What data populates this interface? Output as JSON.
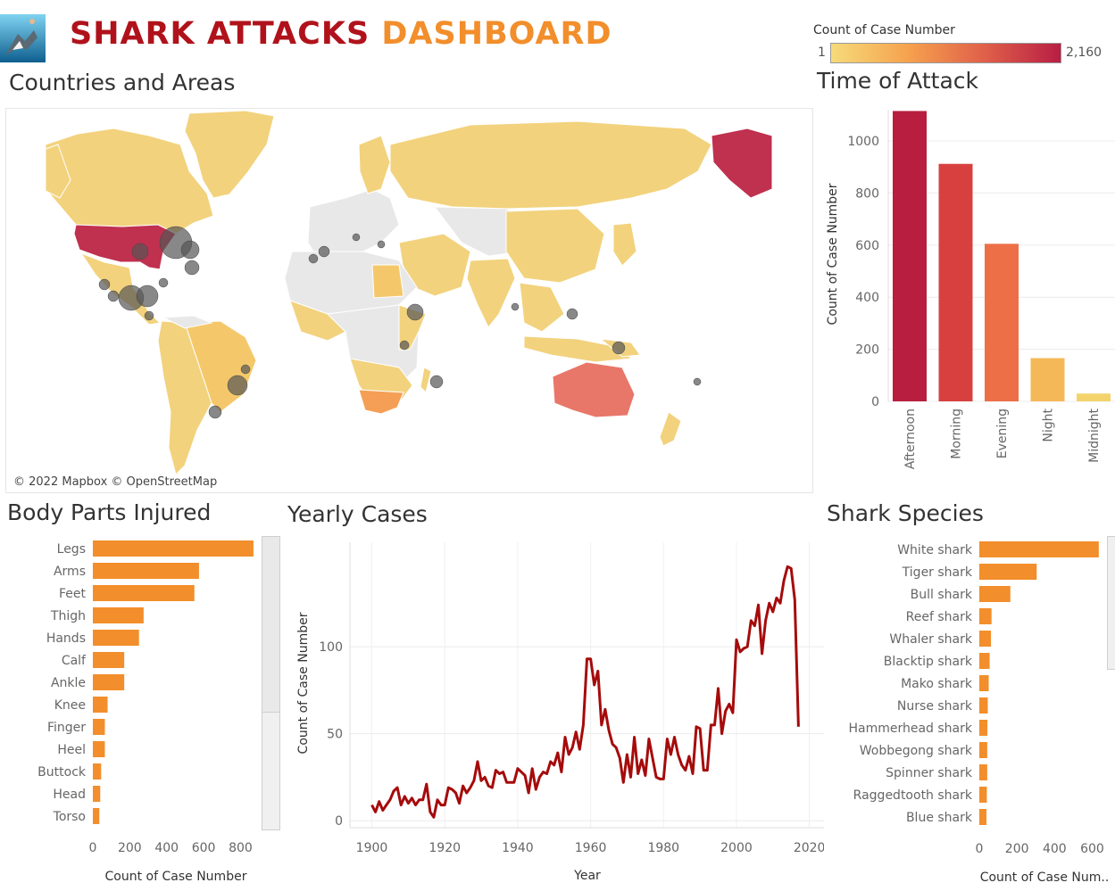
{
  "header": {
    "title_part1": "SHARK ATTACKS",
    "title_part2": "DASHBOARD",
    "title_color1": "#b0121b",
    "title_color2": "#f28e2b",
    "logo_icon": "shark-photo-icon"
  },
  "legend": {
    "label": "Count of Case Number",
    "min": "1",
    "max": "2,160",
    "colors": [
      "#f6db7a",
      "#f6a24e",
      "#e0604a",
      "#b81e44"
    ]
  },
  "map": {
    "title": "Countries and Areas",
    "attribution": "© 2022 Mapbox © OpenStreetMap"
  },
  "chart_data": [
    {
      "id": "time_of_attack",
      "type": "bar",
      "title": "Time of Attack",
      "categories": [
        "Afternoon",
        "Morning",
        "Evening",
        "Night",
        "Midnight"
      ],
      "values": [
        1115,
        912,
        605,
        166,
        30
      ],
      "colors": [
        "#b81e3f",
        "#d8403f",
        "#ec6f47",
        "#f5b858",
        "#f4d36c"
      ],
      "ylabel": "Count of Case Number",
      "yticks": [
        0,
        200,
        400,
        600,
        800,
        1000
      ],
      "ylim": [
        0,
        1120
      ],
      "grid": true
    },
    {
      "id": "body_parts",
      "type": "bar",
      "orientation": "horizontal",
      "title": "Body Parts Injured",
      "categories": [
        "Legs",
        "Arms",
        "Feet",
        "Thigh",
        "Hands",
        "Calf",
        "Ankle",
        "Knee",
        "Finger",
        "Heel",
        "Buttock",
        "Head",
        "Torso"
      ],
      "values": [
        870,
        575,
        550,
        275,
        250,
        170,
        170,
        80,
        65,
        65,
        45,
        40,
        35
      ],
      "color": "#f28e2b",
      "xlabel": "Count of Case Number",
      "xticks": [
        0,
        200,
        400,
        600,
        800
      ],
      "xlim": [
        0,
        880
      ]
    },
    {
      "id": "yearly_cases",
      "type": "line",
      "title": "Yearly Cases",
      "xlabel": "Year",
      "ylabel": "Count of Case Number",
      "x": [
        1900,
        1901,
        1902,
        1903,
        1904,
        1905,
        1906,
        1907,
        1908,
        1909,
        1910,
        1911,
        1912,
        1913,
        1914,
        1915,
        1916,
        1917,
        1918,
        1919,
        1920,
        1921,
        1922,
        1923,
        1924,
        1925,
        1926,
        1927,
        1928,
        1929,
        1930,
        1931,
        1932,
        1933,
        1934,
        1935,
        1936,
        1937,
        1938,
        1939,
        1940,
        1941,
        1942,
        1943,
        1944,
        1945,
        1946,
        1947,
        1948,
        1949,
        1950,
        1951,
        1952,
        1953,
        1954,
        1955,
        1956,
        1957,
        1958,
        1959,
        1960,
        1961,
        1962,
        1963,
        1964,
        1965,
        1966,
        1967,
        1968,
        1969,
        1970,
        1971,
        1972,
        1973,
        1974,
        1975,
        1976,
        1977,
        1978,
        1979,
        1980,
        1981,
        1982,
        1983,
        1984,
        1985,
        1986,
        1987,
        1988,
        1989,
        1990,
        1991,
        1992,
        1993,
        1994,
        1995,
        1996,
        1997,
        1998,
        1999,
        2000,
        2001,
        2002,
        2003,
        2004,
        2005,
        2006,
        2007,
        2008,
        2009,
        2010,
        2011,
        2012,
        2013,
        2014,
        2015,
        2016,
        2017
      ],
      "values": [
        9,
        5,
        11,
        6,
        9,
        12,
        17,
        19,
        9,
        14,
        10,
        13,
        9,
        12,
        12,
        21,
        5,
        2,
        12,
        9,
        9,
        19,
        18,
        16,
        10,
        20,
        16,
        19,
        23,
        34,
        23,
        25,
        20,
        19,
        29,
        27,
        28,
        22,
        22,
        22,
        30,
        28,
        26,
        16,
        30,
        18,
        25,
        28,
        27,
        34,
        32,
        39,
        28,
        48,
        38,
        42,
        51,
        41,
        55,
        93,
        93,
        78,
        86,
        55,
        64,
        52,
        44,
        42,
        36,
        22,
        38,
        25,
        48,
        27,
        35,
        26,
        47,
        36,
        25,
        24,
        24,
        47,
        38,
        48,
        38,
        32,
        29,
        37,
        27,
        54,
        53,
        29,
        29,
        55,
        55,
        76,
        50,
        63,
        67,
        62,
        104,
        97,
        99,
        100,
        115,
        112,
        124,
        96,
        115,
        125,
        120,
        128,
        125,
        138,
        146,
        145,
        127,
        54
      ],
      "xticks": [
        1900,
        1920,
        1940,
        1960,
        1980,
        2000,
        2020
      ],
      "yticks": [
        0,
        50,
        100
      ],
      "xlim": [
        1894,
        2024
      ],
      "ylim": [
        -4,
        160
      ],
      "color": "#a50b0b",
      "grid": true
    },
    {
      "id": "shark_species",
      "type": "bar",
      "orientation": "horizontal",
      "title": "Shark Species",
      "categories": [
        "White shark",
        "Tiger shark",
        "Bull shark",
        "Reef shark",
        "Whaler shark",
        "Blacktip shark",
        "Mako shark",
        "Nurse shark",
        "Hammerhead shark",
        "Wobbegong shark",
        "Spinner shark",
        "Raggedtooth shark",
        "Blue shark"
      ],
      "values": [
        635,
        305,
        165,
        65,
        62,
        55,
        50,
        45,
        43,
        42,
        42,
        40,
        38
      ],
      "color": "#f28e2b",
      "xlabel": "Count of Case Num..",
      "xticks": [
        0,
        200,
        400,
        600
      ],
      "xlim": [
        0,
        650
      ]
    }
  ]
}
